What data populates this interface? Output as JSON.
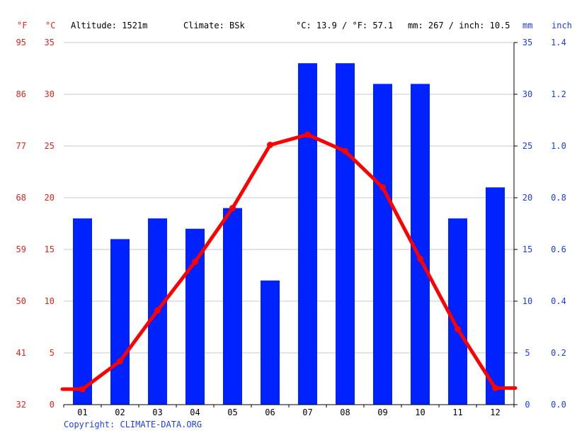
{
  "header": {
    "unit_f": "°F",
    "unit_c": "°C",
    "altitude": "Altitude: 1521m",
    "climate": "Climate: BSk",
    "avg_temp": "°C: 13.9 / °F: 57.1",
    "precip": "mm: 267 / inch: 10.5",
    "unit_mm": "mm",
    "unit_inch": "inch"
  },
  "copyright": "Copyright: CLIMATE-DATA.ORG",
  "colors": {
    "temperature": "#ff0000",
    "precipitation": "#0022ff",
    "temp_labels": "#e3241b",
    "precip_labels": "#1a3cf5",
    "grid": "#c8c8c8"
  },
  "chart_data": {
    "type": "bar",
    "categories": [
      "01",
      "02",
      "03",
      "04",
      "05",
      "06",
      "07",
      "08",
      "09",
      "10",
      "11",
      "12"
    ],
    "series": [
      {
        "type": "bar",
        "axis": "right",
        "values": [
          18,
          16,
          18,
          17,
          19,
          12,
          33,
          33,
          31,
          31,
          18,
          21
        ]
      },
      {
        "type": "line",
        "axis": "left",
        "values": [
          1.5,
          4.2,
          9.1,
          13.8,
          19.0,
          25.1,
          26.1,
          24.5,
          21.0,
          14.1,
          7.3,
          1.6
        ]
      }
    ],
    "left_axis_c": {
      "ticks": [
        0,
        5,
        10,
        15,
        20,
        25,
        30,
        35
      ],
      "lim": [
        0,
        35
      ]
    },
    "left_axis_f": {
      "ticks": [
        32,
        41,
        50,
        59,
        68,
        77,
        86,
        95
      ]
    },
    "right_axis_mm": {
      "ticks": [
        0,
        5,
        10,
        15,
        20,
        25,
        30,
        35
      ],
      "lim": [
        0,
        35
      ]
    },
    "right_axis_inch": {
      "ticks": [
        "0.0",
        "0.2",
        "0.4",
        "0.6",
        "0.8",
        "1.0",
        "1.2",
        "1.4"
      ]
    },
    "grid": true
  }
}
